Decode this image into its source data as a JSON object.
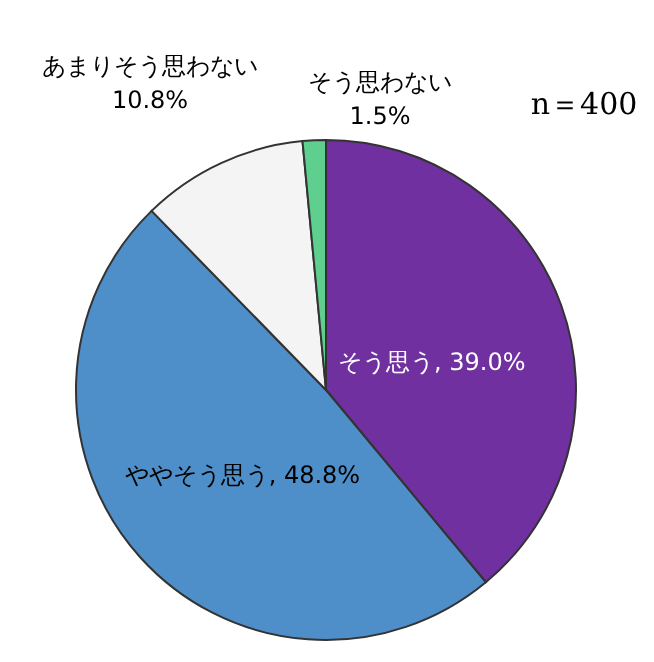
{
  "chart_data": {
    "type": "pie",
    "categories": [
      "そう思う",
      "ややそう思う",
      "あまりそう思わない",
      "そう思わない"
    ],
    "values": [
      39.0,
      48.8,
      10.8,
      1.5
    ],
    "colors": [
      "#7030a0",
      "#4f8fc9",
      "#f4f4f4",
      "#5fcf8f"
    ],
    "value_labels": [
      "39.0%",
      "48.8%",
      "10.8%",
      "1.5%"
    ],
    "annotations": [
      "n＝400"
    ]
  }
}
